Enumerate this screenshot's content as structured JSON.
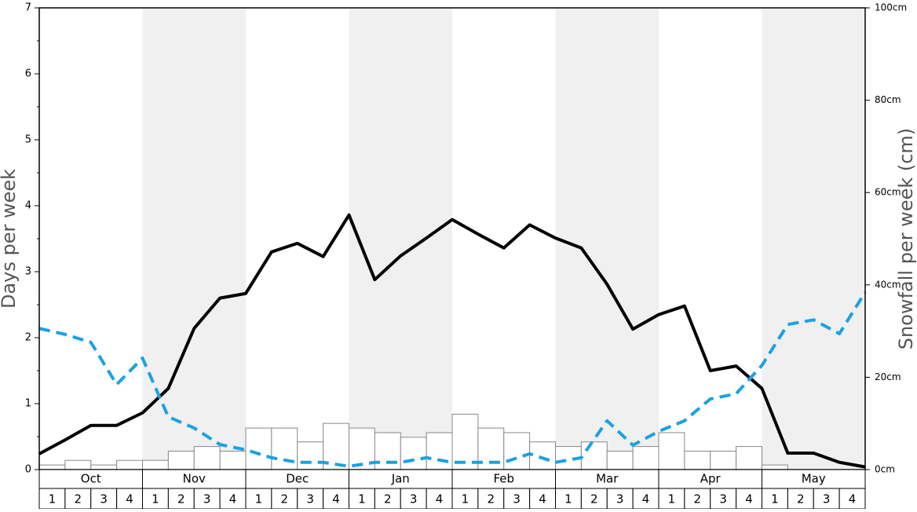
{
  "chart_data": {
    "type": "bar",
    "y_label": "Days per week",
    "y2_label": "Snowfall per week (cm)",
    "months": [
      "Oct",
      "Nov",
      "Dec",
      "Jan",
      "Feb",
      "Mar",
      "Apr",
      "May"
    ],
    "categories": [
      "1",
      "2",
      "3",
      "4",
      "1",
      "2",
      "3",
      "4",
      "1",
      "2",
      "3",
      "4",
      "1",
      "2",
      "3",
      "4",
      "1",
      "2",
      "3",
      "4",
      "1",
      "2",
      "3",
      "4",
      "1",
      "2",
      "3",
      "4",
      "1",
      "2",
      "3",
      "4"
    ],
    "ylim": [
      0,
      7
    ],
    "yticks": [
      0,
      1,
      2,
      3,
      4,
      5,
      6,
      7
    ],
    "y2lim": [
      0,
      100
    ],
    "y2ticks": [
      {
        "value": 0,
        "label": "0cm"
      },
      {
        "value": 20,
        "label": "20cm"
      },
      {
        "value": 40,
        "label": "40cm"
      },
      {
        "value": 60,
        "label": "60cm"
      },
      {
        "value": 80,
        "label": "80cm"
      },
      {
        "value": 100,
        "label": "100cm"
      }
    ],
    "bars": {
      "axis": "y2",
      "color": "#ffffff",
      "values": [
        1,
        2,
        1,
        2,
        2,
        4,
        5,
        4,
        9,
        9,
        6,
        10,
        9,
        8,
        7,
        8,
        12,
        9,
        8,
        6,
        5,
        6,
        4,
        5,
        8,
        4,
        4,
        5,
        1,
        0,
        0,
        0
      ]
    },
    "xlim": [
      0,
      32
    ],
    "x": [
      0,
      1,
      2,
      3,
      4,
      5,
      6,
      7,
      8,
      9,
      10,
      11,
      12,
      13,
      14,
      15,
      16,
      17,
      18,
      19,
      20,
      21,
      22,
      23,
      24,
      25,
      26,
      27,
      28,
      29,
      30,
      31,
      32
    ],
    "series": [
      {
        "type": "line",
        "color": "#000000",
        "dash": false,
        "values": [
          0.24,
          0.45,
          0.67,
          0.67,
          0.86,
          1.23,
          2.14,
          2.6,
          2.67,
          3.3,
          3.43,
          3.23,
          3.86,
          2.88,
          3.24,
          3.51,
          3.79,
          3.57,
          3.36,
          3.71,
          3.51,
          3.36,
          2.81,
          2.13,
          2.35,
          2.48,
          1.5,
          1.57,
          1.23,
          0.25,
          0.25,
          0.11,
          0.04
        ]
      },
      {
        "type": "line",
        "color": "#1ba1e2",
        "dash": true,
        "values": [
          2.14,
          2.05,
          1.93,
          1.29,
          1.69,
          0.8,
          0.63,
          0.38,
          0.3,
          0.18,
          0.11,
          0.11,
          0.05,
          0.11,
          0.11,
          0.18,
          0.11,
          0.11,
          0.11,
          0.24,
          0.11,
          0.18,
          0.74,
          0.37,
          0.58,
          0.74,
          1.07,
          1.15,
          1.58,
          2.2,
          2.27,
          2.06,
          2.69
        ]
      }
    ]
  }
}
